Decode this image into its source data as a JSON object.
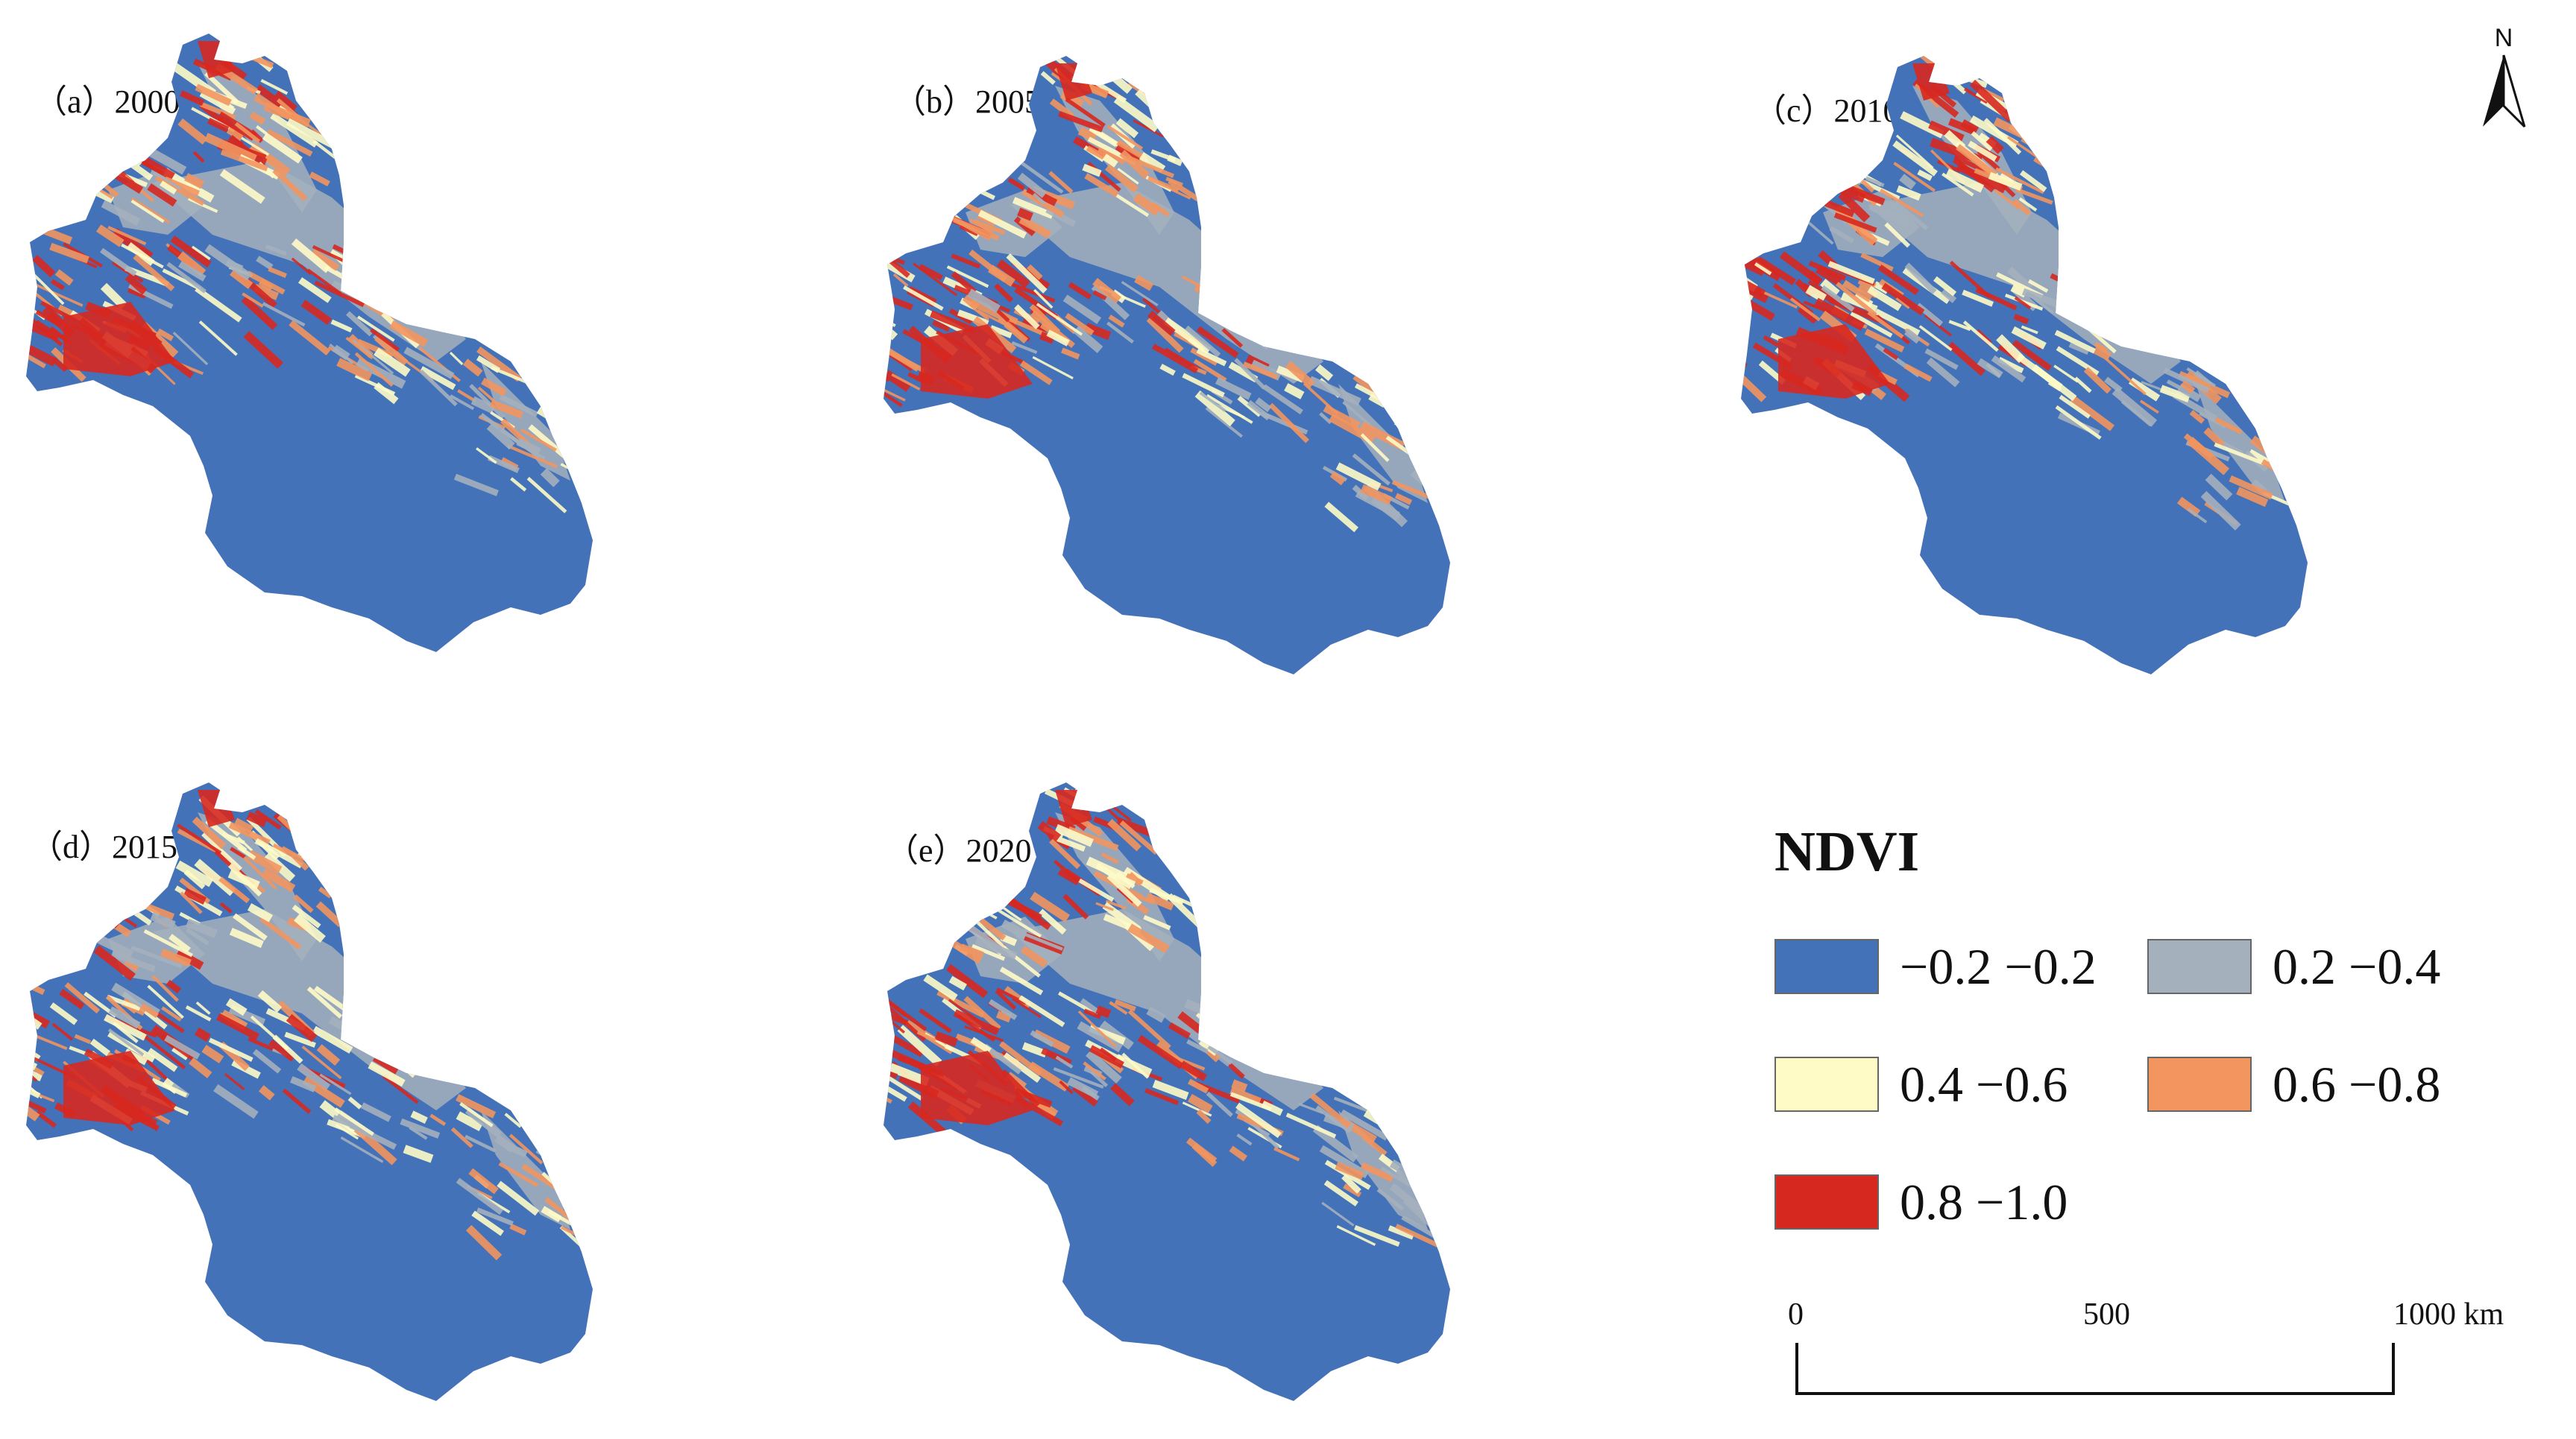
{
  "panels": [
    {
      "label": "（a）2000"
    },
    {
      "label": "（b）2005"
    },
    {
      "label": "（c）2010"
    },
    {
      "label": "（d）2015"
    },
    {
      "label": "（e）2020"
    }
  ],
  "north_arrow": {
    "label": "N"
  },
  "legend": {
    "title": "NDVI",
    "items": [
      {
        "label": "−0.2 −0.2",
        "color": "#4472b8"
      },
      {
        "label": "0.2 −0.4",
        "color": "#a4b0bc"
      },
      {
        "label": "0.4 −0.6",
        "color": "#fefbc6"
      },
      {
        "label": "0.6 −0.8",
        "color": "#f2955f"
      },
      {
        "label": "0.8 −1.0",
        "color": "#d7281f"
      }
    ]
  },
  "scale_bar": {
    "labels": [
      "0",
      "500",
      "1000 km"
    ]
  },
  "colors": {
    "base": "#4472b8",
    "gray": "#a4b0bc",
    "yellow": "#fefbc6",
    "orange": "#f2955f",
    "red": "#d7281f"
  }
}
